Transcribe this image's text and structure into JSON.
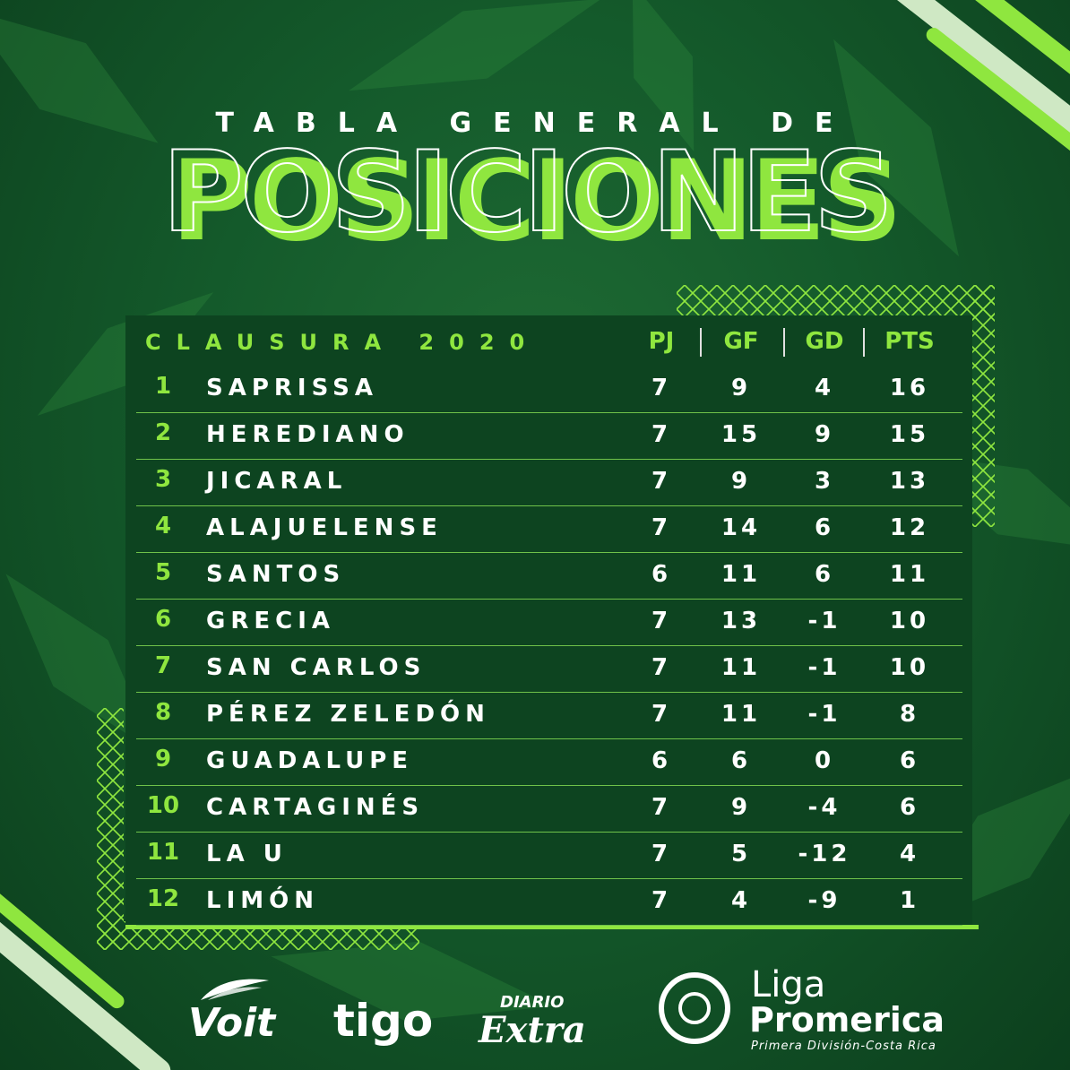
{
  "header": {
    "subtitle": "TABLA GENERAL DE",
    "title": "POSICIONES"
  },
  "table": {
    "season": "CLAUSURA 2020",
    "columns": [
      "PJ",
      "GF",
      "GD",
      "PTS"
    ],
    "rows": [
      {
        "pos": "1",
        "team": "SAPRISSA",
        "pj": "7",
        "gf": "9",
        "gd": "4",
        "pts": "16"
      },
      {
        "pos": "2",
        "team": "HEREDIANO",
        "pj": "7",
        "gf": "15",
        "gd": "9",
        "pts": "15"
      },
      {
        "pos": "3",
        "team": "JICARAL",
        "pj": "7",
        "gf": "9",
        "gd": "3",
        "pts": "13"
      },
      {
        "pos": "4",
        "team": "ALAJUELENSE",
        "pj": "7",
        "gf": "14",
        "gd": "6",
        "pts": "12"
      },
      {
        "pos": "5",
        "team": "SANTOS",
        "pj": "6",
        "gf": "11",
        "gd": "6",
        "pts": "11"
      },
      {
        "pos": "6",
        "team": "GRECIA",
        "pj": "7",
        "gf": "13",
        "gd": "-1",
        "pts": "10"
      },
      {
        "pos": "7",
        "team": "SAN CARLOS",
        "pj": "7",
        "gf": "11",
        "gd": "-1",
        "pts": "10"
      },
      {
        "pos": "8",
        "team": "PÉREZ ZELEDÓN",
        "pj": "7",
        "gf": "11",
        "gd": "-1",
        "pts": "8"
      },
      {
        "pos": "9",
        "team": "GUADALUPE",
        "pj": "6",
        "gf": "6",
        "gd": "0",
        "pts": "6"
      },
      {
        "pos": "10",
        "team": "CARTAGINÉS",
        "pj": "7",
        "gf": "9",
        "gd": "-4",
        "pts": "6"
      },
      {
        "pos": "11",
        "team": "LA U",
        "pj": "7",
        "gf": "5",
        "gd": "-12",
        "pts": "4"
      },
      {
        "pos": "12",
        "team": "LIMÓN",
        "pj": "7",
        "gf": "4",
        "gd": "-9",
        "pts": "1"
      }
    ]
  },
  "sponsors": {
    "voit": "Voit",
    "tigo": "tigo",
    "diario": "DIARIO",
    "extra": "Extra",
    "liga_line1": "Liga",
    "liga_line2": "Promerica",
    "liga_line3": "Primera División-Costa Rica"
  },
  "colors": {
    "accent": "#8fe63f",
    "panel": "#0d4420",
    "background": "#145a2b"
  }
}
